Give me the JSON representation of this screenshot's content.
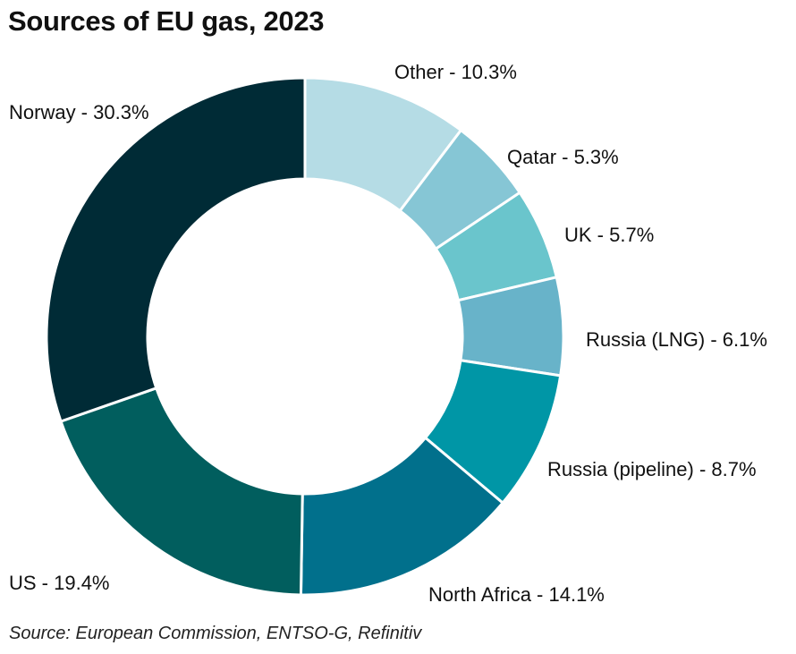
{
  "title": "Sources of EU gas, 2023",
  "source": "Source: European Commission, ENTSO-G, Refinitiv",
  "chart_data": {
    "type": "pie",
    "variant": "donut",
    "title": "Sources of EU gas, 2023",
    "start": "12 o'clock",
    "direction": "clockwise",
    "unit": "%",
    "slices": [
      {
        "key": "other",
        "name": "Other",
        "value": 10.3,
        "label": "Other - 10.3%",
        "color": "#b5dce5"
      },
      {
        "key": "qatar",
        "name": "Qatar",
        "value": 5.3,
        "label": "Qatar - 5.3%",
        "color": "#86c6d5"
      },
      {
        "key": "uk",
        "name": "UK",
        "value": 5.7,
        "label": "UK - 5.7%",
        "color": "#6ac5cc"
      },
      {
        "key": "russia-lng",
        "name": "Russia (LNG)",
        "value": 6.1,
        "label": "Russia (LNG) - 6.1%",
        "color": "#68b3c9"
      },
      {
        "key": "russia-pipeline",
        "name": "Russia (pipeline)",
        "value": 8.7,
        "label": "Russia (pipeline) - 8.7%",
        "color": "#0096a6"
      },
      {
        "key": "north-africa",
        "name": "North Africa",
        "value": 14.1,
        "label": "North Africa - 14.1%",
        "color": "#01708c"
      },
      {
        "key": "us",
        "name": "US",
        "value": 19.4,
        "label": "US - 19.4%",
        "color": "#015e5e"
      },
      {
        "key": "norway",
        "name": "Norway",
        "value": 30.3,
        "label": "Norway - 30.3%",
        "color": "#002b36"
      }
    ]
  }
}
